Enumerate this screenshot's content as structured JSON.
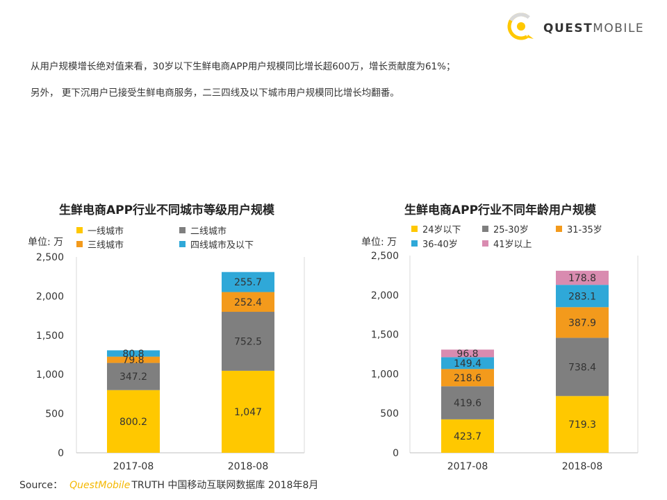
{
  "header": {
    "brand_bold": "QUEST",
    "brand_light": "MOBILE"
  },
  "intro": {
    "line1": "从用户规模增长绝对值来看，30岁以下生鲜电商APP用户规模同比增长超600万，增长贡献度为61%；",
    "line2": "另外， 更下沉用户已接受生鲜电商服务，二三四线及以下城市用户规模同比增长均翻番。"
  },
  "colors": {
    "yellow": "#FFC800",
    "gray": "#7F7F7F",
    "orange": "#F39A1C",
    "blue": "#2FA8D8",
    "pink": "#D98BB0"
  },
  "chart_data": [
    {
      "type": "bar",
      "stacked": true,
      "title": "生鲜电商APP行业不同城市等级用户规模",
      "ylabel": "单位: 万",
      "categories": [
        "2017-08",
        "2018-08"
      ],
      "ylim": [
        0,
        2500
      ],
      "yticks": [
        "0",
        "500",
        "1,000",
        "1,500",
        "2,000",
        "2,500"
      ],
      "series": [
        {
          "name": "一线城市",
          "color": "#FFC800",
          "values": [
            800.2,
            1047
          ],
          "labels": [
            "800.2",
            "1,047"
          ]
        },
        {
          "name": "二线城市",
          "color": "#7F7F7F",
          "values": [
            347.2,
            752.5
          ],
          "labels": [
            "347.2",
            "752.5"
          ]
        },
        {
          "name": "三线城市",
          "color": "#F39A1C",
          "values": [
            79.8,
            252.4
          ],
          "labels": [
            "79.8",
            "252.4"
          ]
        },
        {
          "name": "四线城市及以下",
          "color": "#2FA8D8",
          "values": [
            80.8,
            255.7
          ],
          "labels": [
            "80.8",
            "255.7"
          ]
        }
      ]
    },
    {
      "type": "bar",
      "stacked": true,
      "title": "生鲜电商APP行业不同年龄用户规模",
      "ylabel": "单位: 万",
      "categories": [
        "2017-08",
        "2018-08"
      ],
      "ylim": [
        0,
        2500
      ],
      "yticks": [
        "0",
        "500",
        "1,000",
        "1,500",
        "2,000",
        "2,500"
      ],
      "series": [
        {
          "name": "24岁以下",
          "color": "#FFC800",
          "values": [
            423.7,
            719.3
          ],
          "labels": [
            "423.7",
            "719.3"
          ]
        },
        {
          "name": "25-30岁",
          "color": "#7F7F7F",
          "values": [
            419.6,
            738.4
          ],
          "labels": [
            "419.6",
            "738.4"
          ]
        },
        {
          "name": "31-35岁",
          "color": "#F39A1C",
          "values": [
            218.6,
            387.9
          ],
          "labels": [
            "218.6",
            "387.9"
          ]
        },
        {
          "name": "36-40岁",
          "color": "#2FA8D8",
          "values": [
            149.4,
            283.1
          ],
          "labels": [
            "149.4",
            "283.1"
          ]
        },
        {
          "name": "41岁以上",
          "color": "#D98BB0",
          "values": [
            96.8,
            178.8
          ],
          "labels": [
            "96.8",
            "178.8"
          ]
        }
      ]
    }
  ],
  "source": {
    "prefix": "Source：",
    "brand": "QuestMobile",
    "rest": "TRUTH 中国移动互联网数据库 2018年8月"
  }
}
